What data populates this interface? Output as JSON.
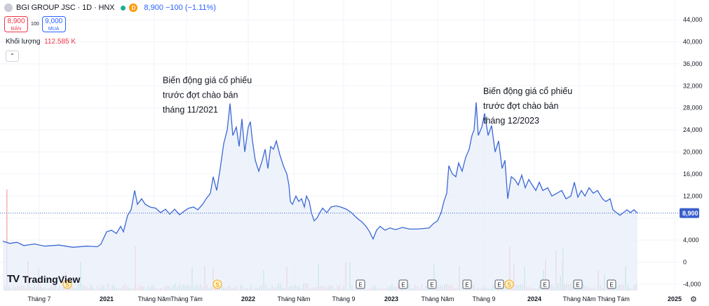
{
  "header": {
    "symbol_title": "BGI GROUP JSC · 1D · HNX",
    "dot_label": "D",
    "price_change": "8,900 −100 (−1.11%)"
  },
  "trade": {
    "sell_price": "8,900",
    "sell_label": "BÁN",
    "spread": "100",
    "buy_price": "9,000",
    "buy_label": "MUA"
  },
  "volume": {
    "label": "Khối lượng",
    "value": "112.585 K"
  },
  "collapse_icon": "chevron-up-icon",
  "logo_text": "TradingView",
  "colors": {
    "line": "#3c67d6",
    "fill": "#e8effa",
    "last_price": "#3a5fcd",
    "vol_up": "#9ed9cf",
    "vol_down": "#f7b6bb",
    "grid": "#f0f3fa"
  },
  "chart_data": {
    "type": "area",
    "symbol": "BGI GROUP JSC",
    "interval": "1D",
    "ylim": [
      -4000,
      44000
    ],
    "y_ticks": [
      -4000,
      0,
      4000,
      8000,
      12000,
      16000,
      20000,
      24000,
      28000,
      32000,
      36000,
      40000,
      44000
    ],
    "y_tick_labels": [
      "-4,000",
      "0",
      "4,000",
      "",
      "12,000",
      "16,000",
      "20,000",
      "24,000",
      "28,000",
      "32,000",
      "36,000",
      "40,000",
      "44,000"
    ],
    "last_price": 8900,
    "last_price_label": "8,900",
    "x_tick_labels": [
      {
        "label": "Tháng 7",
        "t": 0.052
      },
      {
        "label": "2021",
        "t": 0.148
      },
      {
        "label": "Tháng Năm",
        "t": 0.216
      },
      {
        "label": "Tháng Tám",
        "t": 0.262
      },
      {
        "label": "2022",
        "t": 0.35
      },
      {
        "label": "Tháng Năm",
        "t": 0.415
      },
      {
        "label": "Tháng 9",
        "t": 0.486
      },
      {
        "label": "2023",
        "t": 0.554
      },
      {
        "label": "Tháng Năm",
        "t": 0.62
      },
      {
        "label": "Tháng 9",
        "t": 0.686
      },
      {
        "label": "2024",
        "t": 0.758
      },
      {
        "label": "Tháng Năm",
        "t": 0.822
      },
      {
        "label": "Tháng Tám",
        "t": 0.871
      },
      {
        "label": "2025",
        "t": 0.958
      }
    ],
    "series": [
      {
        "name": "",
        "points": [
          [
            0.0,
            3800
          ],
          [
            0.01,
            3400
          ],
          [
            0.02,
            3600
          ],
          [
            0.03,
            3000
          ],
          [
            0.045,
            3300
          ],
          [
            0.06,
            2900
          ],
          [
            0.08,
            3100
          ],
          [
            0.1,
            2700
          ],
          [
            0.12,
            2900
          ],
          [
            0.135,
            2800
          ],
          [
            0.14,
            3300
          ],
          [
            0.148,
            5500
          ],
          [
            0.155,
            5800
          ],
          [
            0.162,
            5200
          ],
          [
            0.168,
            6500
          ],
          [
            0.172,
            5500
          ],
          [
            0.178,
            8500
          ],
          [
            0.183,
            9500
          ],
          [
            0.188,
            13000
          ],
          [
            0.192,
            10500
          ],
          [
            0.198,
            11500
          ],
          [
            0.203,
            10500
          ],
          [
            0.21,
            10000
          ],
          [
            0.218,
            9800
          ],
          [
            0.225,
            9000
          ],
          [
            0.232,
            9600
          ],
          [
            0.238,
            8700
          ],
          [
            0.245,
            9600
          ],
          [
            0.252,
            8600
          ],
          [
            0.258,
            9200
          ],
          [
            0.265,
            9800
          ],
          [
            0.272,
            10000
          ],
          [
            0.278,
            9500
          ],
          [
            0.285,
            10500
          ],
          [
            0.29,
            11500
          ],
          [
            0.296,
            12500
          ],
          [
            0.3,
            15500
          ],
          [
            0.305,
            13000
          ],
          [
            0.31,
            17000
          ],
          [
            0.315,
            21500
          ],
          [
            0.32,
            24000
          ],
          [
            0.324,
            28800
          ],
          [
            0.328,
            23000
          ],
          [
            0.333,
            24500
          ],
          [
            0.337,
            21000
          ],
          [
            0.341,
            26000
          ],
          [
            0.345,
            20000
          ],
          [
            0.35,
            24500
          ],
          [
            0.353,
            25500
          ],
          [
            0.356,
            22000
          ],
          [
            0.36,
            18500
          ],
          [
            0.365,
            16500
          ],
          [
            0.37,
            18500
          ],
          [
            0.374,
            20500
          ],
          [
            0.378,
            17000
          ],
          [
            0.382,
            21000
          ],
          [
            0.386,
            20500
          ],
          [
            0.39,
            22000
          ],
          [
            0.395,
            19500
          ],
          [
            0.4,
            17500
          ],
          [
            0.405,
            16000
          ],
          [
            0.408,
            14000
          ],
          [
            0.41,
            11000
          ],
          [
            0.413,
            10500
          ],
          [
            0.418,
            12000
          ],
          [
            0.422,
            11000
          ],
          [
            0.426,
            11500
          ],
          [
            0.43,
            10000
          ],
          [
            0.433,
            12000
          ],
          [
            0.437,
            11000
          ],
          [
            0.44,
            9000
          ],
          [
            0.444,
            7500
          ],
          [
            0.448,
            8000
          ],
          [
            0.452,
            9000
          ],
          [
            0.456,
            9800
          ],
          [
            0.462,
            9000
          ],
          [
            0.468,
            10000
          ],
          [
            0.475,
            10200
          ],
          [
            0.482,
            10000
          ],
          [
            0.49,
            9600
          ],
          [
            0.497,
            9000
          ],
          [
            0.505,
            8000
          ],
          [
            0.512,
            7300
          ],
          [
            0.518,
            6500
          ],
          [
            0.523,
            5500
          ],
          [
            0.528,
            4200
          ],
          [
            0.533,
            5800
          ],
          [
            0.538,
            6500
          ],
          [
            0.545,
            5800
          ],
          [
            0.552,
            6200
          ],
          [
            0.56,
            5900
          ],
          [
            0.57,
            6300
          ],
          [
            0.58,
            6000
          ],
          [
            0.59,
            6000
          ],
          [
            0.6,
            6100
          ],
          [
            0.608,
            6200
          ],
          [
            0.614,
            7000
          ],
          [
            0.62,
            7500
          ],
          [
            0.625,
            9000
          ],
          [
            0.629,
            11000
          ],
          [
            0.633,
            12500
          ],
          [
            0.636,
            17500
          ],
          [
            0.641,
            16000
          ],
          [
            0.646,
            15500
          ],
          [
            0.65,
            18000
          ],
          [
            0.655,
            16500
          ],
          [
            0.66,
            19000
          ],
          [
            0.665,
            20500
          ],
          [
            0.669,
            23000
          ],
          [
            0.672,
            24000
          ],
          [
            0.675,
            29000
          ],
          [
            0.678,
            23000
          ],
          [
            0.683,
            24500
          ],
          [
            0.687,
            27000
          ],
          [
            0.692,
            23000
          ],
          [
            0.697,
            24800
          ],
          [
            0.702,
            20000
          ],
          [
            0.707,
            22000
          ],
          [
            0.712,
            17000
          ],
          [
            0.716,
            18500
          ],
          [
            0.72,
            11500
          ],
          [
            0.725,
            15500
          ],
          [
            0.73,
            15000
          ],
          [
            0.735,
            14000
          ],
          [
            0.74,
            15800
          ],
          [
            0.745,
            13500
          ],
          [
            0.75,
            15000
          ],
          [
            0.755,
            14000
          ],
          [
            0.76,
            13000
          ],
          [
            0.765,
            14500
          ],
          [
            0.77,
            13000
          ],
          [
            0.777,
            13500
          ],
          [
            0.783,
            12000
          ],
          [
            0.79,
            12500
          ],
          [
            0.797,
            13000
          ],
          [
            0.803,
            11500
          ],
          [
            0.81,
            12000
          ],
          [
            0.815,
            14500
          ],
          [
            0.82,
            11800
          ],
          [
            0.825,
            13000
          ],
          [
            0.83,
            12000
          ],
          [
            0.836,
            13500
          ],
          [
            0.842,
            12500
          ],
          [
            0.848,
            13000
          ],
          [
            0.855,
            11500
          ],
          [
            0.86,
            11000
          ],
          [
            0.866,
            11500
          ],
          [
            0.87,
            9500
          ],
          [
            0.875,
            9000
          ],
          [
            0.88,
            8500
          ],
          [
            0.885,
            9000
          ],
          [
            0.89,
            9500
          ],
          [
            0.895,
            9000
          ],
          [
            0.9,
            9500
          ],
          [
            0.905,
            8900
          ]
        ]
      }
    ],
    "annotations": [
      {
        "lines": [
          "Biến động giá cổ phiếu",
          "trước đợt chào bán",
          "tháng 11/2021"
        ],
        "anchor_t": 0.228,
        "anchor_price": 32500
      },
      {
        "lines": [
          "Biến động giá cổ phiếu",
          "trước đợt chào bán",
          "tháng 12/2023"
        ],
        "anchor_t": 0.685,
        "anchor_price": 30500
      }
    ],
    "event_markers": [
      {
        "label": "S",
        "t": 0.092,
        "kind": "split"
      },
      {
        "label": "S",
        "t": 0.306,
        "kind": "split"
      },
      {
        "label": "E",
        "t": 0.51,
        "kind": "earnings"
      },
      {
        "label": "E",
        "t": 0.571,
        "kind": "earnings"
      },
      {
        "label": "E",
        "t": 0.612,
        "kind": "earnings"
      },
      {
        "label": "E",
        "t": 0.662,
        "kind": "earnings"
      },
      {
        "label": "E",
        "t": 0.708,
        "kind": "earnings"
      },
      {
        "label": "S",
        "t": 0.722,
        "kind": "split"
      },
      {
        "label": "E",
        "t": 0.773,
        "kind": "earnings"
      },
      {
        "label": "E",
        "t": 0.82,
        "kind": "earnings"
      },
      {
        "label": "E",
        "t": 0.868,
        "kind": "earnings"
      }
    ]
  }
}
